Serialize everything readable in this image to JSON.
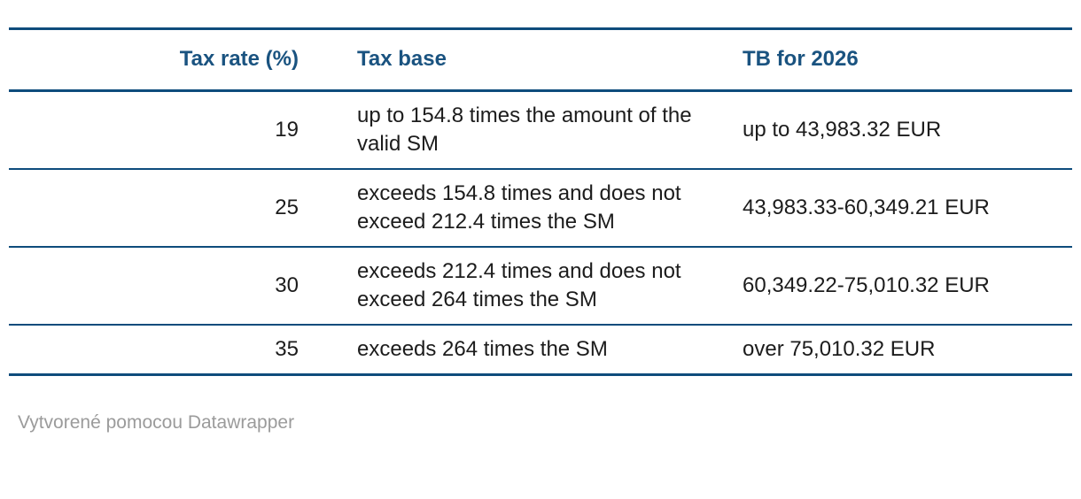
{
  "colors": {
    "accent_line": "#0e4c7c",
    "header_text": "#1a5380",
    "body_text": "#1c1c1c",
    "footer_text": "#9b9b9b"
  },
  "chart_data": {
    "type": "table",
    "columns": [
      "Tax rate (%)",
      "Tax base",
      "TB for 2026"
    ],
    "rows": [
      [
        "19",
        "up to 154.8 times the amount of the valid SM",
        "up to 43,983.32 EUR"
      ],
      [
        "25",
        "exceeds 154.8 times and does not exceed 212.4 times the SM",
        "43,983.33-60,349.21 EUR"
      ],
      [
        "30",
        "exceeds 212.4 times and does not exceed 264 times the SM",
        "60,349.22-75,010.32 EUR"
      ],
      [
        "35",
        "exceeds 264 times the SM",
        "over 75,010.32 EUR"
      ]
    ],
    "layout": {
      "column_alignments": [
        "right",
        "left",
        "left"
      ],
      "grid": "horizontal-rules-only",
      "legend_position": "none"
    }
  },
  "footer": {
    "attribution": "Vytvorené pomocou Datawrapper"
  }
}
